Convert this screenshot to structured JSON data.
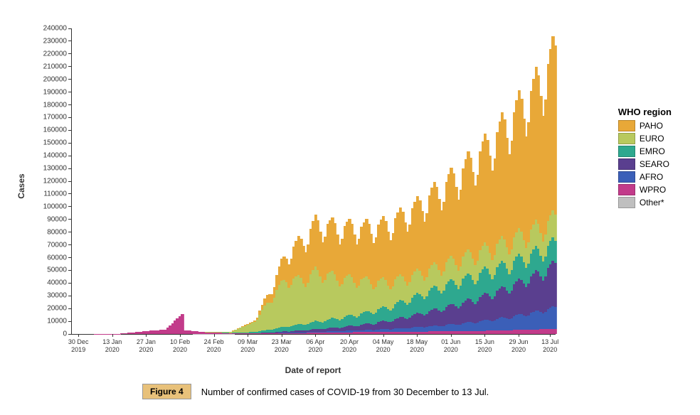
{
  "chart": {
    "type": "stacked-bar",
    "ylabel": "Cases",
    "xlabel": "Date of report",
    "ylim": [
      0,
      240000
    ],
    "ytick_step": 10000,
    "yticks": [
      0,
      10000,
      20000,
      30000,
      40000,
      50000,
      60000,
      70000,
      80000,
      90000,
      100000,
      110000,
      120000,
      130000,
      140000,
      150000,
      160000,
      170000,
      180000,
      190000,
      200000,
      210000,
      220000,
      230000,
      240000
    ],
    "xticks": [
      "30 Dec\n2019",
      "13 Jan\n2020",
      "27 Jan\n2020",
      "10 Feb\n2020",
      "24 Feb\n2020",
      "09 Mar\n2020",
      "23 Mar\n2020",
      "06 Apr\n2020",
      "20 Apr\n2020",
      "04 May\n2020",
      "18 May\n2020",
      "01 Jun\n2020",
      "15 Jun\n2020",
      "29 Jun\n2020",
      "13 Jul\n2020"
    ],
    "xtick_positions_pct": [
      1.5,
      8.5,
      15.5,
      22.5,
      29.5,
      36.5,
      43.5,
      50.5,
      57.5,
      64.5,
      71.5,
      78.5,
      85.5,
      92.5,
      99
    ],
    "background_color": "#ffffff",
    "border_color": "#333333",
    "tick_fontsize": 10,
    "label_fontsize": 12,
    "legend": {
      "title": "WHO region",
      "title_fontsize": 13,
      "item_fontsize": 12,
      "items": [
        {
          "label": "PAHO",
          "color": "#e8a838"
        },
        {
          "label": "EURO",
          "color": "#b8c95e"
        },
        {
          "label": "EMRO",
          "color": "#2ea88f"
        },
        {
          "label": "SEARO",
          "color": "#5a3f8f"
        },
        {
          "label": "AFRO",
          "color": "#3b5fb8"
        },
        {
          "label": "WPRO",
          "color": "#c23b8a"
        },
        {
          "label": "Other*",
          "color": "#bfbfbf"
        }
      ]
    },
    "series_order": [
      "Other",
      "WPRO",
      "AFRO",
      "SEARO",
      "EMRO",
      "EURO",
      "PAHO"
    ],
    "colors": {
      "PAHO": "#e8a838",
      "EURO": "#b8c95e",
      "EMRO": "#2ea88f",
      "SEARO": "#5a3f8f",
      "AFRO": "#3b5fb8",
      "WPRO": "#c23b8a",
      "Other": "#bfbfbf"
    },
    "data": {
      "n_days": 200,
      "control_points": [
        {
          "day": 0,
          "PAHO": 0,
          "EURO": 0,
          "EMRO": 0,
          "SEARO": 0,
          "AFRO": 0,
          "WPRO": 0,
          "Other": 0
        },
        {
          "day": 10,
          "PAHO": 0,
          "EURO": 0,
          "EMRO": 0,
          "SEARO": 0,
          "AFRO": 0,
          "WPRO": 50,
          "Other": 0
        },
        {
          "day": 20,
          "PAHO": 0,
          "EURO": 0,
          "EMRO": 0,
          "SEARO": 0,
          "AFRO": 0,
          "WPRO": 300,
          "Other": 0
        },
        {
          "day": 30,
          "PAHO": 0,
          "EURO": 0,
          "EMRO": 0,
          "SEARO": 0,
          "AFRO": 0,
          "WPRO": 2200,
          "Other": 0
        },
        {
          "day": 38,
          "PAHO": 0,
          "EURO": 0,
          "EMRO": 0,
          "SEARO": 0,
          "AFRO": 0,
          "WPRO": 3500,
          "Other": 0
        },
        {
          "day": 45,
          "PAHO": 0,
          "EURO": 0,
          "EMRO": 0,
          "SEARO": 0,
          "AFRO": 0,
          "WPRO": 15500,
          "Other": 0
        },
        {
          "day": 46,
          "PAHO": 0,
          "EURO": 0,
          "EMRO": 0,
          "SEARO": 0,
          "AFRO": 0,
          "WPRO": 3000,
          "Other": 0
        },
        {
          "day": 55,
          "PAHO": 0,
          "EURO": 100,
          "EMRO": 50,
          "SEARO": 0,
          "AFRO": 0,
          "WPRO": 1200,
          "Other": 100
        },
        {
          "day": 65,
          "PAHO": 100,
          "EURO": 800,
          "EMRO": 200,
          "SEARO": 50,
          "AFRO": 0,
          "WPRO": 500,
          "Other": 50
        },
        {
          "day": 75,
          "PAHO": 1000,
          "EURO": 8000,
          "EMRO": 1000,
          "SEARO": 200,
          "AFRO": 100,
          "WPRO": 300,
          "Other": 0
        },
        {
          "day": 82,
          "PAHO": 8000,
          "EURO": 26000,
          "EMRO": 2500,
          "SEARO": 500,
          "AFRO": 300,
          "WPRO": 400,
          "Other": 0
        },
        {
          "day": 88,
          "PAHO": 20000,
          "EURO": 38000,
          "EMRO": 4000,
          "SEARO": 1000,
          "AFRO": 500,
          "WPRO": 600,
          "Other": 0
        },
        {
          "day": 95,
          "PAHO": 32000,
          "EURO": 35000,
          "EMRO": 5000,
          "SEARO": 1500,
          "AFRO": 600,
          "WPRO": 800,
          "Other": 0
        },
        {
          "day": 100,
          "PAHO": 38000,
          "EURO": 40000,
          "EMRO": 6000,
          "SEARO": 2000,
          "AFRO": 800,
          "WPRO": 1000,
          "Other": 0
        },
        {
          "day": 110,
          "PAHO": 40000,
          "EURO": 32000,
          "EMRO": 7500,
          "SEARO": 3000,
          "AFRO": 1000,
          "WPRO": 1300,
          "Other": 0
        },
        {
          "day": 120,
          "PAHO": 42000,
          "EURO": 26000,
          "EMRO": 9000,
          "SEARO": 4500,
          "AFRO": 1500,
          "WPRO": 1500,
          "Other": 0
        },
        {
          "day": 130,
          "PAHO": 46000,
          "EURO": 20000,
          "EMRO": 11000,
          "SEARO": 6500,
          "AFRO": 2200,
          "WPRO": 1700,
          "Other": 0
        },
        {
          "day": 140,
          "PAHO": 52000,
          "EURO": 18000,
          "EMRO": 14000,
          "SEARO": 9500,
          "AFRO": 3200,
          "WPRO": 1900,
          "Other": 0
        },
        {
          "day": 150,
          "PAHO": 60000,
          "EURO": 17000,
          "EMRO": 17000,
          "SEARO": 13000,
          "AFRO": 4500,
          "WPRO": 2000,
          "Other": 0
        },
        {
          "day": 160,
          "PAHO": 68000,
          "EURO": 17500,
          "EMRO": 18500,
          "SEARO": 16000,
          "AFRO": 6000,
          "WPRO": 2200,
          "Other": 0
        },
        {
          "day": 170,
          "PAHO": 80000,
          "EURO": 18000,
          "EMRO": 19000,
          "SEARO": 20000,
          "AFRO": 8000,
          "WPRO": 2500,
          "Other": 0
        },
        {
          "day": 180,
          "PAHO": 95000,
          "EURO": 18500,
          "EMRO": 18500,
          "SEARO": 24000,
          "AFRO": 10500,
          "WPRO": 3000,
          "Other": 0
        },
        {
          "day": 190,
          "PAHO": 110000,
          "EURO": 19000,
          "EMRO": 18000,
          "SEARO": 29000,
          "AFRO": 13500,
          "WPRO": 3500,
          "Other": 0
        },
        {
          "day": 199,
          "PAHO": 130000,
          "EURO": 20000,
          "EMRO": 17000,
          "SEARO": 34000,
          "AFRO": 17000,
          "WPRO": 4000,
          "Other": 0
        }
      ],
      "weekly_noise": [
        1.0,
        1.04,
        1.07,
        1.02,
        0.92,
        0.83,
        0.88
      ]
    }
  },
  "caption": {
    "badge": "Figure 4",
    "text": "Number of confirmed cases of COVID-19 from 30 December to 13 Jul.",
    "badge_bg": "#e8c17a",
    "badge_border": "#999999",
    "fontsize": 13
  }
}
